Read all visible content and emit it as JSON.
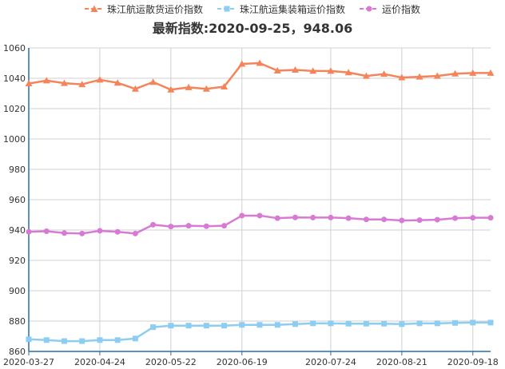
{
  "chart_data": {
    "type": "line",
    "title": "最新指数:2020-09-25，948.06",
    "xlabel": "",
    "ylabel": "",
    "x": [
      "2020-03-27",
      "2020-04-03",
      "2020-04-10",
      "2020-04-17",
      "2020-04-24",
      "2020-05-01",
      "2020-05-08",
      "2020-05-15",
      "2020-05-22",
      "2020-05-29",
      "2020-06-05",
      "2020-06-12",
      "2020-06-19",
      "2020-06-26",
      "2020-07-03",
      "2020-07-10",
      "2020-07-17",
      "2020-07-24",
      "2020-07-31",
      "2020-08-07",
      "2020-08-14",
      "2020-08-21",
      "2020-08-28",
      "2020-09-04",
      "2020-09-11",
      "2020-09-18",
      "2020-09-25"
    ],
    "xticks": [
      "2020-03-27",
      "2020-04-24",
      "2020-05-22",
      "2020-06-19",
      "2020-07-24",
      "2020-08-21",
      "2020-09-18"
    ],
    "ylim": [
      860,
      1060
    ],
    "yticks": [
      860,
      880,
      900,
      920,
      940,
      960,
      980,
      1000,
      1020,
      1040,
      1060
    ],
    "grid": true,
    "legend_position": "top",
    "series": [
      {
        "name": "珠江航运散货运价指数",
        "color": "#f4845a",
        "marker": "triangle",
        "values": [
          1036.5,
          1038.5,
          1036.8,
          1036.0,
          1039.0,
          1037.0,
          1033.0,
          1037.5,
          1032.5,
          1034.0,
          1033.0,
          1034.5,
          1049.5,
          1050.0,
          1045.0,
          1045.5,
          1044.8,
          1044.8,
          1043.8,
          1041.5,
          1042.8,
          1040.5,
          1041.0,
          1041.5,
          1043.0,
          1043.5,
          1043.5
        ]
      },
      {
        "name": "珠江航运集装箱运价指数",
        "color": "#8ecdf2",
        "marker": "square",
        "values": [
          868.0,
          867.5,
          866.8,
          866.8,
          867.5,
          867.5,
          868.5,
          876.0,
          877.0,
          877.0,
          877.0,
          877.0,
          877.5,
          877.5,
          877.5,
          878.0,
          878.5,
          878.5,
          878.3,
          878.3,
          878.3,
          878.0,
          878.5,
          878.5,
          878.8,
          879.0,
          879.0
        ]
      },
      {
        "name": "运价指数",
        "color": "#d77ad4",
        "marker": "circle",
        "values": [
          938.8,
          939.2,
          938.0,
          937.7,
          939.5,
          938.8,
          937.7,
          943.5,
          942.3,
          942.8,
          942.5,
          942.8,
          949.5,
          949.5,
          947.8,
          948.3,
          948.2,
          948.2,
          947.8,
          947.0,
          947.0,
          946.3,
          946.5,
          946.8,
          947.8,
          948.06,
          948.06
        ]
      }
    ]
  }
}
